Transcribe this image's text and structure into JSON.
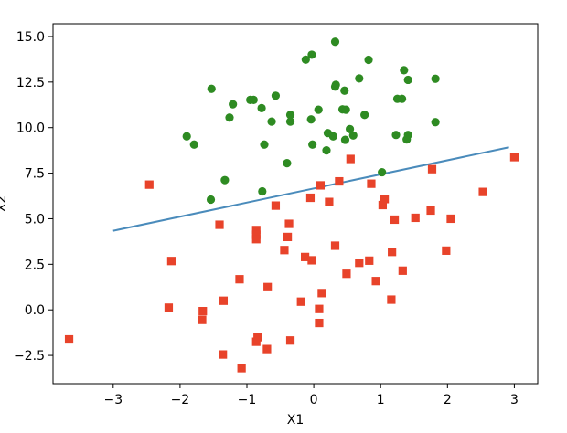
{
  "chart_data": {
    "type": "scatter",
    "title": "",
    "xlabel": "X1",
    "ylabel": "X2",
    "xlim": [
      -3.9,
      3.35
    ],
    "ylim": [
      -4.05,
      15.7
    ],
    "xticks": [
      -3,
      -2,
      -1,
      0,
      1,
      2,
      3
    ],
    "xtick_labels": [
      "−3",
      "−2",
      "−1",
      "0",
      "1",
      "2",
      "3"
    ],
    "yticks": [
      -2.5,
      0.0,
      2.5,
      5.0,
      7.5,
      10.0,
      12.5,
      15.0
    ],
    "ytick_labels": [
      "−2.5",
      "0.0",
      "2.5",
      "5.0",
      "7.5",
      "10.0",
      "12.5",
      "15.0"
    ],
    "grid": false,
    "legend": "none",
    "series": [
      {
        "marker": "circle",
        "color": "#2e8b22",
        "points": [
          [
            -0.12,
            13.73
          ],
          [
            -0.03,
            14.0
          ],
          [
            0.32,
            14.71
          ],
          [
            0.82,
            13.72
          ],
          [
            1.35,
            13.15
          ],
          [
            -1.53,
            12.13
          ],
          [
            0.33,
            12.35
          ],
          [
            0.32,
            12.25
          ],
          [
            0.46,
            12.03
          ],
          [
            0.68,
            12.7
          ],
          [
            1.41,
            12.62
          ],
          [
            1.82,
            12.68
          ],
          [
            -1.21,
            11.28
          ],
          [
            -0.95,
            11.52
          ],
          [
            -0.9,
            11.52
          ],
          [
            -0.57,
            11.75
          ],
          [
            1.25,
            11.58
          ],
          [
            1.32,
            11.58
          ],
          [
            -0.78,
            11.07
          ],
          [
            0.07,
            10.98
          ],
          [
            0.43,
            11.0
          ],
          [
            0.48,
            10.98
          ],
          [
            -1.26,
            10.55
          ],
          [
            -0.63,
            10.33
          ],
          [
            -0.35,
            10.7
          ],
          [
            -0.35,
            10.33
          ],
          [
            -0.04,
            10.45
          ],
          [
            0.76,
            10.7
          ],
          [
            1.82,
            10.3
          ],
          [
            0.54,
            9.92
          ],
          [
            0.21,
            9.7
          ],
          [
            0.59,
            9.57
          ],
          [
            0.29,
            9.52
          ],
          [
            0.47,
            9.33
          ],
          [
            -1.9,
            9.52
          ],
          [
            -1.79,
            9.07
          ],
          [
            -0.74,
            9.07
          ],
          [
            -0.02,
            9.07
          ],
          [
            0.19,
            8.75
          ],
          [
            1.23,
            9.6
          ],
          [
            1.41,
            9.6
          ],
          [
            1.39,
            9.35
          ],
          [
            -0.4,
            8.05
          ],
          [
            -1.33,
            7.12
          ],
          [
            1.02,
            7.55
          ],
          [
            -1.54,
            6.05
          ],
          [
            -0.77,
            6.5
          ]
        ]
      },
      {
        "marker": "square",
        "color": "#e8432a",
        "points": [
          [
            -2.46,
            6.87
          ],
          [
            0.38,
            7.05
          ],
          [
            0.55,
            8.28
          ],
          [
            1.77,
            7.72
          ],
          [
            3.0,
            8.38
          ],
          [
            0.86,
            6.92
          ],
          [
            0.1,
            6.83
          ],
          [
            -0.05,
            6.15
          ],
          [
            1.06,
            6.08
          ],
          [
            0.23,
            5.92
          ],
          [
            -0.57,
            5.72
          ],
          [
            1.03,
            5.75
          ],
          [
            1.75,
            5.45
          ],
          [
            2.53,
            6.47
          ],
          [
            1.21,
            4.95
          ],
          [
            1.52,
            5.05
          ],
          [
            2.05,
            5.0
          ],
          [
            -1.41,
            4.67
          ],
          [
            -0.37,
            4.72
          ],
          [
            -0.86,
            4.38
          ],
          [
            -0.86,
            4.12
          ],
          [
            -0.86,
            3.88
          ],
          [
            -0.39,
            4.0
          ],
          [
            0.32,
            3.52
          ],
          [
            1.17,
            3.18
          ],
          [
            1.98,
            3.25
          ],
          [
            -0.44,
            3.28
          ],
          [
            -2.13,
            2.68
          ],
          [
            -0.13,
            2.9
          ],
          [
            -0.03,
            2.72
          ],
          [
            0.68,
            2.58
          ],
          [
            0.83,
            2.7
          ],
          [
            0.49,
            1.98
          ],
          [
            0.93,
            1.58
          ],
          [
            1.33,
            2.15
          ],
          [
            -1.11,
            1.68
          ],
          [
            -0.69,
            1.25
          ],
          [
            0.12,
            0.92
          ],
          [
            1.16,
            0.56
          ],
          [
            -2.17,
            0.12
          ],
          [
            -1.66,
            -0.07
          ],
          [
            -1.35,
            0.5
          ],
          [
            -0.19,
            0.45
          ],
          [
            0.08,
            0.05
          ],
          [
            -1.67,
            -0.55
          ],
          [
            0.08,
            -0.72
          ],
          [
            -3.66,
            -1.62
          ],
          [
            -0.84,
            -1.5
          ],
          [
            -0.86,
            -1.75
          ],
          [
            -0.35,
            -1.68
          ],
          [
            -0.7,
            -2.15
          ],
          [
            -1.36,
            -2.45
          ],
          [
            -1.08,
            -3.2
          ]
        ]
      }
    ],
    "line": {
      "color": "#4a8bbb",
      "x": [
        -3.0,
        2.92
      ],
      "y": [
        4.34,
        8.92
      ]
    }
  }
}
